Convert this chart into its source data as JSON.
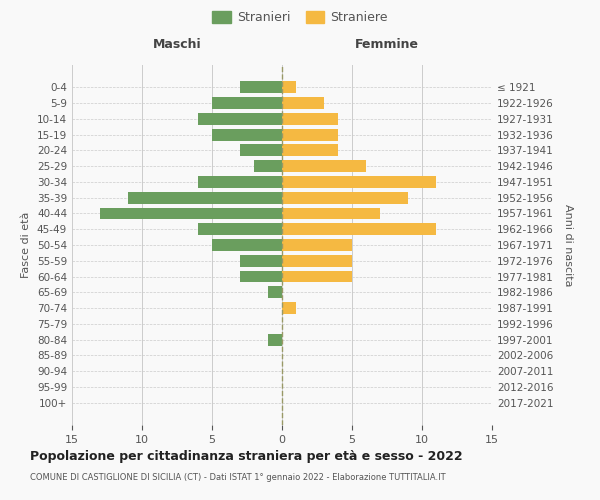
{
  "age_groups": [
    "0-4",
    "5-9",
    "10-14",
    "15-19",
    "20-24",
    "25-29",
    "30-34",
    "35-39",
    "40-44",
    "45-49",
    "50-54",
    "55-59",
    "60-64",
    "65-69",
    "70-74",
    "75-79",
    "80-84",
    "85-89",
    "90-94",
    "95-99",
    "100+"
  ],
  "birth_years": [
    "2017-2021",
    "2012-2016",
    "2007-2011",
    "2002-2006",
    "1997-2001",
    "1992-1996",
    "1987-1991",
    "1982-1986",
    "1977-1981",
    "1972-1976",
    "1967-1971",
    "1962-1966",
    "1957-1961",
    "1952-1956",
    "1947-1951",
    "1942-1946",
    "1937-1941",
    "1932-1936",
    "1927-1931",
    "1922-1926",
    "≤ 1921"
  ],
  "males": [
    3,
    5,
    6,
    5,
    3,
    2,
    6,
    11,
    13,
    6,
    5,
    3,
    3,
    1,
    0,
    0,
    1,
    0,
    0,
    0,
    0
  ],
  "females": [
    1,
    3,
    4,
    4,
    4,
    6,
    11,
    9,
    7,
    11,
    5,
    5,
    5,
    0,
    1,
    0,
    0,
    0,
    0,
    0,
    0
  ],
  "male_color": "#6a9e5e",
  "female_color": "#f5b942",
  "background_color": "#f9f9f9",
  "grid_color": "#cccccc",
  "title": "Popolazione per cittadinanza straniera per età e sesso - 2022",
  "subtitle": "COMUNE DI CASTIGLIONE DI SICILIA (CT) - Dati ISTAT 1° gennaio 2022 - Elaborazione TUTTITALIA.IT",
  "xlabel_left": "Maschi",
  "xlabel_right": "Femmine",
  "ylabel_left": "Fasce di età",
  "ylabel_right": "Anni di nascita",
  "legend_male": "Stranieri",
  "legend_female": "Straniere",
  "xlim": 15
}
